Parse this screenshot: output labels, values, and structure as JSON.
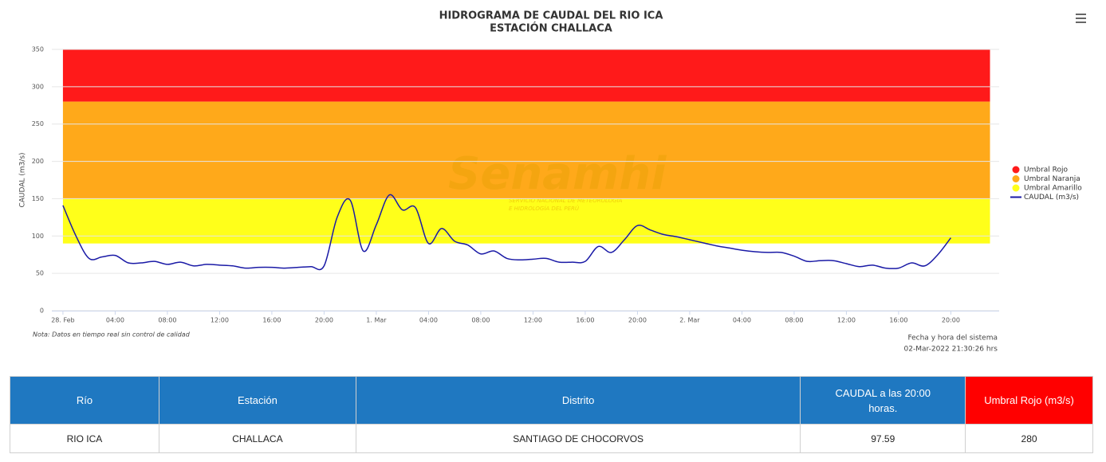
{
  "chart_data": {
    "type": "line",
    "title": "HIDROGRAMA DE CAUDAL DEL RIO ICA",
    "subtitle": "ESTACIÓN CHALLACA",
    "y_label": "CAUDAL (m3/s)",
    "watermark": "Senamhi",
    "watermark_sub": [
      "SERVICIO NACIONAL DE METEOROLOGÍA",
      "E HIDROLOGÍA DEL PERÚ"
    ],
    "note": "Nota: Datos en tiempo real sin control de calidad",
    "system_time_label": "Fecha y hora del sistema",
    "system_time": "02-Mar-2022 21:30:26 hrs",
    "ylim": [
      0,
      350
    ],
    "yticks": [
      0,
      50,
      100,
      150,
      200,
      250,
      300,
      350
    ],
    "grid": true,
    "xlim": [
      -0.85,
      71.7
    ],
    "xticks": [
      {
        "value": 0,
        "label": "28. Feb"
      },
      {
        "value": 4,
        "label": "04:00"
      },
      {
        "value": 8,
        "label": "08:00"
      },
      {
        "value": 12,
        "label": "12:00"
      },
      {
        "value": 16,
        "label": "16:00"
      },
      {
        "value": 20,
        "label": "20:00"
      },
      {
        "value": 24,
        "label": "1. Mar"
      },
      {
        "value": 28,
        "label": "04:00"
      },
      {
        "value": 32,
        "label": "08:00"
      },
      {
        "value": 36,
        "label": "12:00"
      },
      {
        "value": 40,
        "label": "16:00"
      },
      {
        "value": 44,
        "label": "20:00"
      },
      {
        "value": 48,
        "label": "2. Mar"
      },
      {
        "value": 52,
        "label": "04:00"
      },
      {
        "value": 56,
        "label": "08:00"
      },
      {
        "value": 60,
        "label": "12:00"
      },
      {
        "value": 64,
        "label": "16:00"
      },
      {
        "value": 68,
        "label": "20:00"
      }
    ],
    "bands": [
      {
        "name": "Umbral Rojo",
        "color": "#ff1a1a",
        "from": 280,
        "to": 350
      },
      {
        "name": "Umbral Naranja",
        "color": "#ffa91a",
        "from": 150,
        "to": 280
      },
      {
        "name": "Umbral Amarillo",
        "color": "#ffff1a",
        "from": 90,
        "to": 150
      }
    ],
    "band_x": [
      0,
      71
    ],
    "series": [
      {
        "name": "CAUDAL (m3/s)",
        "color": "#1a1aa6",
        "x": [
          0,
          1,
          2,
          3,
          4,
          5,
          6,
          7,
          8,
          9,
          10,
          11,
          12,
          13,
          14,
          15,
          16,
          17,
          18,
          19,
          20,
          21,
          22,
          23,
          24,
          25,
          26,
          27,
          28,
          29,
          30,
          31,
          32,
          33,
          34,
          35,
          36,
          37,
          38,
          39,
          40,
          41,
          42,
          43,
          44,
          45,
          46,
          47,
          48,
          49,
          50,
          51,
          52,
          53,
          54,
          55,
          56,
          57,
          58,
          59,
          60,
          61,
          62,
          63,
          64,
          65,
          66,
          67,
          68
        ],
        "values": [
          141,
          100,
          70,
          72,
          74,
          64,
          64,
          66,
          62,
          65,
          60,
          62,
          61,
          60,
          57,
          58,
          58,
          57,
          58,
          59,
          60,
          125,
          148,
          80,
          115,
          155,
          135,
          138,
          90,
          110,
          93,
          88,
          76,
          80,
          70,
          68,
          69,
          70,
          65,
          65,
          66,
          86,
          78,
          95,
          114,
          108,
          102,
          99,
          95,
          91,
          87,
          84,
          81,
          79,
          78,
          78,
          73,
          66,
          67,
          67,
          63,
          59,
          61,
          57,
          57,
          64,
          60,
          75,
          97.59
        ]
      }
    ]
  },
  "table": {
    "header": [
      "Río",
      "Estación",
      "Distrito",
      "CAUDAL a las 20:00 horas.",
      "Umbral Rojo (m3/s)"
    ],
    "rows": [
      [
        "RIO ICA",
        "CHALLACA",
        "SANTIAGO DE CHOCORVOS",
        "97.59",
        "280"
      ]
    ]
  }
}
